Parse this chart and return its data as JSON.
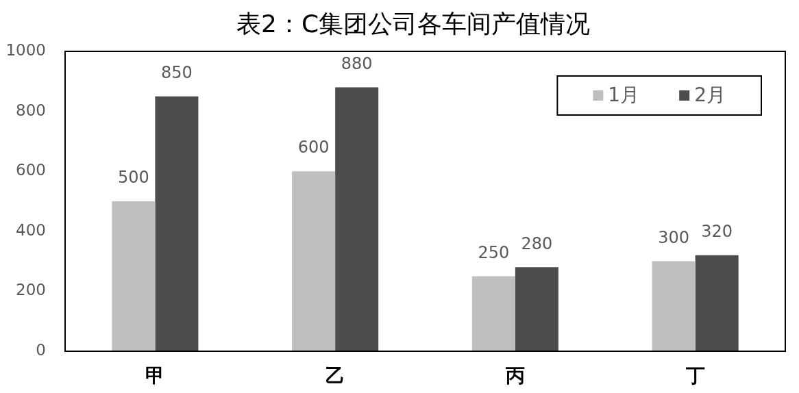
{
  "chart_data": {
    "type": "bar",
    "title": "表2：C集团公司各车间产值情况",
    "categories": [
      "甲",
      "乙",
      "丙",
      "丁"
    ],
    "series": [
      {
        "name": "1月",
        "color": "#bfbfbf",
        "values": [
          500,
          600,
          250,
          300
        ]
      },
      {
        "name": "2月",
        "color": "#4d4d4d",
        "values": [
          850,
          880,
          280,
          320
        ]
      }
    ],
    "ylim": [
      0,
      1000
    ],
    "yticks": [
      0,
      200,
      400,
      600,
      800,
      1000
    ],
    "grid": false,
    "legend": "top right",
    "data_labels": true
  }
}
